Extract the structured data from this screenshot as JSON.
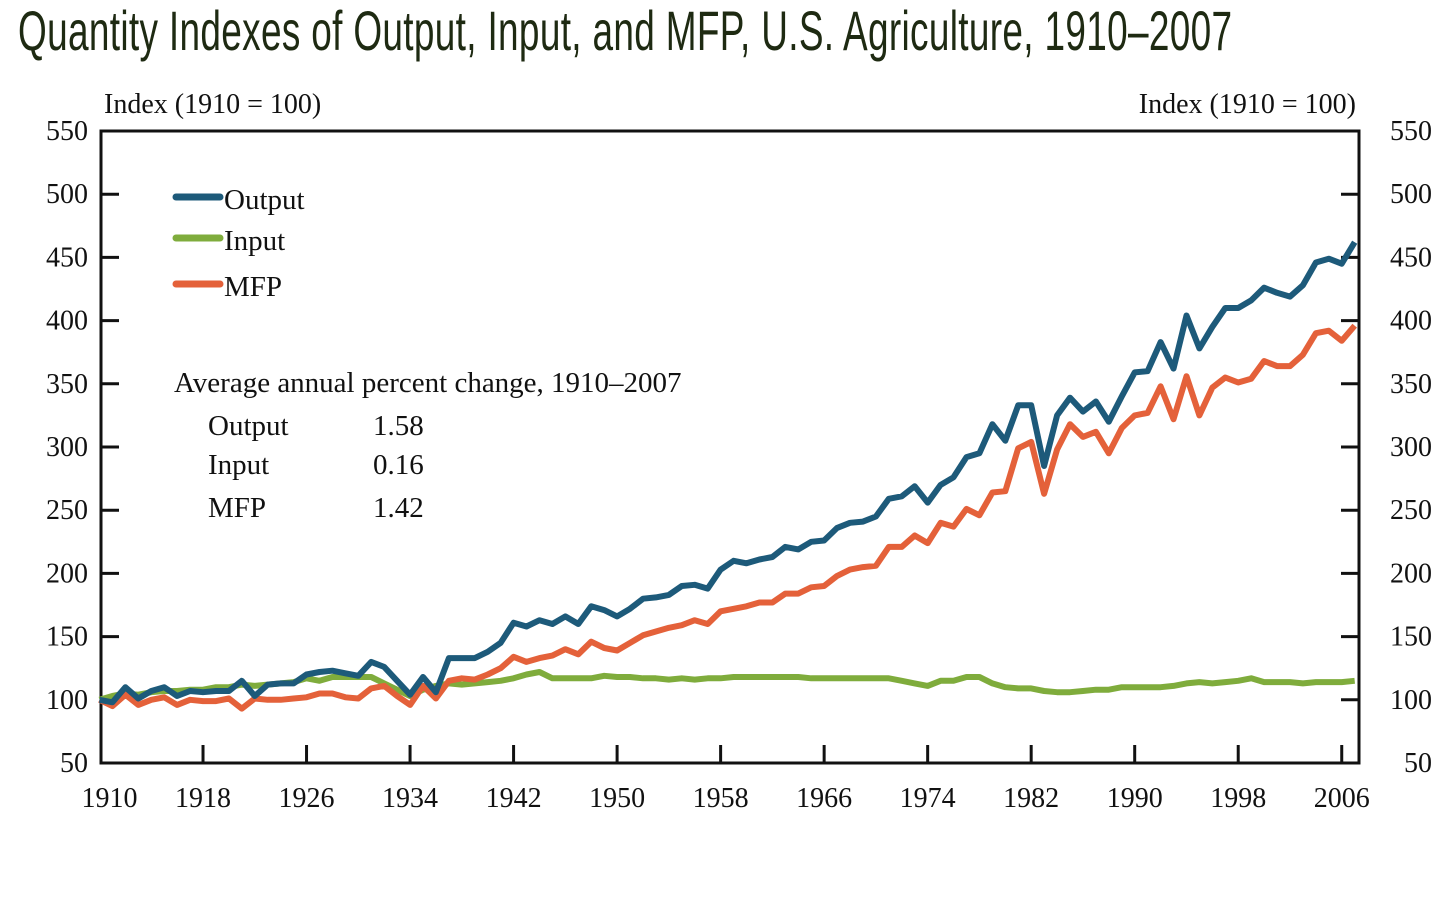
{
  "chart_data": {
    "type": "line",
    "title": "Quantity Indexes of Output, Input, and MFP, U.S. Agriculture, 1910–2007",
    "ylabel_left": "Index (1910 = 100)",
    "ylabel_right": "Index (1910 = 100)",
    "xlabel": "",
    "xlim": [
      1910,
      2007
    ],
    "ylim": [
      50,
      550
    ],
    "x_ticks": [
      1910,
      1918,
      1926,
      1934,
      1942,
      1950,
      1958,
      1966,
      1974,
      1982,
      1990,
      1998,
      2006
    ],
    "y_ticks": [
      50,
      100,
      150,
      200,
      250,
      300,
      350,
      400,
      450,
      500,
      550
    ],
    "grid": false,
    "legend_position": "top-left",
    "x_start": 1910,
    "series": [
      {
        "name": "Output",
        "color": "#1d5a7a",
        "values": [
          100,
          98,
          110,
          101,
          107,
          110,
          103,
          107,
          106,
          107,
          107,
          115,
          103,
          112,
          113,
          113,
          120,
          122,
          123,
          121,
          119,
          130,
          126,
          115,
          104,
          118,
          106,
          133,
          133,
          133,
          138,
          145,
          161,
          158,
          163,
          160,
          166,
          160,
          174,
          171,
          166,
          172,
          180,
          181,
          183,
          190,
          191,
          188,
          203,
          210,
          208,
          211,
          213,
          221,
          219,
          225,
          226,
          236,
          240,
          241,
          245,
          259,
          261,
          269,
          256,
          270,
          276,
          292,
          295,
          318,
          305,
          333,
          333,
          285,
          325,
          339,
          328,
          336,
          320,
          340,
          359,
          360,
          383,
          362,
          404,
          378,
          395,
          410,
          410,
          416,
          426,
          422,
          419,
          428,
          446,
          449,
          445,
          462
        ]
      },
      {
        "name": "Input",
        "color": "#7fac3c",
        "values": [
          100,
          103,
          105,
          104,
          106,
          107,
          107,
          108,
          108,
          110,
          110,
          112,
          111,
          112,
          113,
          114,
          117,
          115,
          118,
          118,
          118,
          118,
          113,
          108,
          103,
          108,
          111,
          113,
          112,
          113,
          114,
          115,
          117,
          120,
          122,
          117,
          117,
          117,
          117,
          119,
          118,
          118,
          117,
          117,
          116,
          117,
          116,
          117,
          117,
          118,
          118,
          118,
          118,
          118,
          118,
          117,
          117,
          117,
          117,
          117,
          117,
          117,
          115,
          113,
          111,
          115,
          115,
          118,
          118,
          113,
          110,
          109,
          109,
          107,
          106,
          106,
          107,
          108,
          108,
          110,
          110,
          110,
          110,
          111,
          113,
          114,
          113,
          114,
          115,
          117,
          114,
          114,
          114,
          113,
          114,
          114,
          114,
          115
        ]
      },
      {
        "name": "MFP",
        "color": "#e4613a",
        "values": [
          100,
          95,
          104,
          96,
          100,
          102,
          96,
          100,
          99,
          99,
          101,
          93,
          101,
          100,
          100,
          101,
          102,
          105,
          105,
          102,
          101,
          109,
          111,
          103,
          96,
          111,
          101,
          115,
          117,
          116,
          120,
          125,
          134,
          130,
          133,
          135,
          140,
          136,
          146,
          141,
          139,
          145,
          151,
          154,
          157,
          159,
          163,
          160,
          170,
          172,
          174,
          177,
          177,
          184,
          184,
          189,
          190,
          198,
          203,
          205,
          206,
          221,
          221,
          230,
          224,
          240,
          237,
          251,
          246,
          264,
          265,
          299,
          304,
          263,
          298,
          318,
          308,
          312,
          295,
          315,
          325,
          327,
          348,
          322,
          356,
          325,
          347,
          355,
          351,
          354,
          368,
          364,
          364,
          373,
          390,
          392,
          384,
          396
        ]
      }
    ],
    "annotation": {
      "heading": "Average annual percent change, 1910–2007",
      "rows": [
        {
          "label": "Output",
          "value": "1.58"
        },
        {
          "label": "Input",
          "value": "0.16"
        },
        {
          "label": "MFP",
          "value": "1.42"
        }
      ]
    }
  }
}
